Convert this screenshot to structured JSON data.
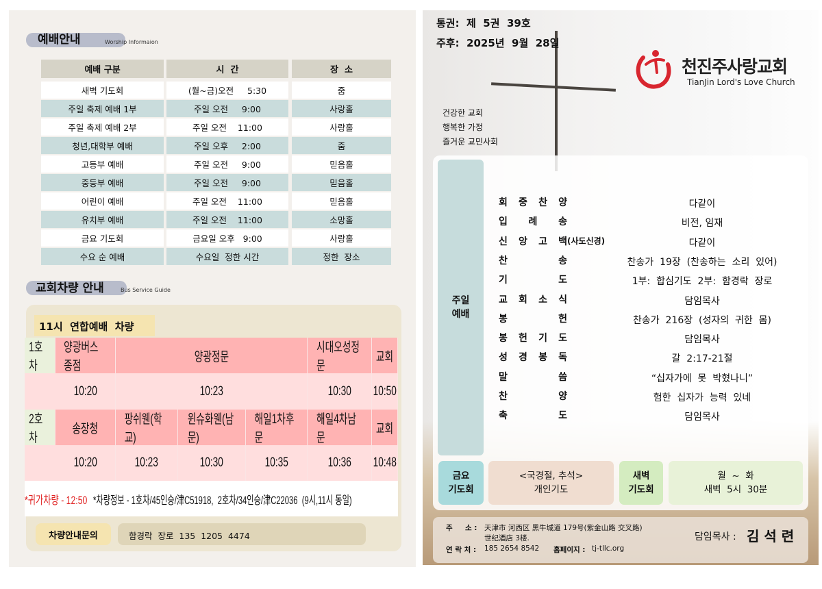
{
  "worship": {
    "title": "예배안내",
    "subtitle": "Worship Informaion",
    "headers": [
      "예배 구분",
      "시  간",
      "장  소"
    ],
    "rows": [
      [
        "새벽 기도회",
        "(월~금)오전     5:30",
        "줌"
      ],
      [
        "주일 축제 예배 1부",
        "주일 오전     9:00",
        "사랑홀"
      ],
      [
        "주일 축제 예배 2부",
        "주일 오전    11:00",
        "사랑홀"
      ],
      [
        "청년,대학부 예배",
        "주일 오후     2:00",
        "줌"
      ],
      [
        "고등부 예배",
        "주일 오전     9:00",
        "믿음홀"
      ],
      [
        "중등부 예배",
        "주일 오전     9:00",
        "믿음홀"
      ],
      [
        "어린이 예배",
        "주일 오전    11:00",
        "믿음홀"
      ],
      [
        "유치부 예배",
        "주일 오전    11:00",
        "소망홀"
      ],
      [
        "금요 기도회",
        "금요일 오후   9:00",
        "사랑홀"
      ],
      [
        "수요 순 예배",
        "수요일  정한 시간",
        "정한  장소"
      ]
    ]
  },
  "bus": {
    "title": "교회차량 안내",
    "subtitle": "Bus Service Guide",
    "banner": "11시  연합예배  차량",
    "bus1": {
      "label": "1호차",
      "stops": [
        "양광버스종점",
        "양광정문",
        "시대오성정문",
        "교회"
      ],
      "times": [
        "10:20",
        "10:23",
        "10:30",
        "10:50"
      ]
    },
    "bus2": {
      "label": "2호차",
      "stops": [
        "송장청",
        "팡쉬웬(학교)",
        "윈슈화웬(남문)",
        "해일1차후문",
        "해일4차남문",
        "교회"
      ],
      "times": [
        "10:20",
        "10:23",
        "10:30",
        "10:35",
        "10:36",
        "10:48"
      ]
    },
    "return_note": "*귀가차량 - 12:50",
    "info_note": "*차량정보 - 1호차/45인승/津C51918,  2호차/34인승/津C22036  (9시,11시 동일)",
    "inquiry_label": "차량안내문의",
    "inquiry_value": "함경락  장로  135  1205  4474"
  },
  "header": {
    "volume": "통권:  제  5권  39호",
    "week": "주후:  2025년  9월  28일",
    "church_name": "천진주사랑교회",
    "church_name_en": "TianJin Lord's Love Church",
    "motto": [
      "건강한 교회",
      "행복한 가정",
      "즐거운 교민사회"
    ]
  },
  "order": {
    "section": [
      "주일",
      "예배"
    ],
    "items": [
      {
        "label": [
          "회",
          "중",
          "찬",
          "양"
        ],
        "suffix": "",
        "value": "다같이"
      },
      {
        "label": [
          "입",
          "례",
          "송"
        ],
        "suffix": "",
        "value": "비전, 임재"
      },
      {
        "label": [
          "신",
          "앙",
          "고",
          "백"
        ],
        "suffix": "(사도신경)",
        "value": "다같이"
      },
      {
        "label": [
          "찬",
          "송"
        ],
        "suffix": "",
        "value": "찬송가  19장  (찬송하는  소리  있어)"
      },
      {
        "label": [
          "기",
          "도"
        ],
        "suffix": "",
        "value": "1부:  합심기도  2부:  함경락  장로"
      },
      {
        "label": [
          "교",
          "회",
          "소",
          "식"
        ],
        "suffix": "",
        "value": "담임목사"
      },
      {
        "label": [
          "봉",
          "헌"
        ],
        "suffix": "",
        "value": "찬송가  216장  (성자의  귀한  몸)"
      },
      {
        "label": [
          "봉",
          "헌",
          "기",
          "도"
        ],
        "suffix": "",
        "value": "담임목사"
      },
      {
        "label": [
          "성",
          "경",
          "봉",
          "독"
        ],
        "suffix": "",
        "value": "갈  2:17-21절"
      },
      {
        "label": [
          "말",
          "씀"
        ],
        "suffix": "",
        "value": "“십자가에  못  박혔나니”"
      },
      {
        "label": [
          "찬",
          "양"
        ],
        "suffix": "",
        "value": "험한  십자가  능력  있네"
      },
      {
        "label": [
          "축",
          "도"
        ],
        "suffix": "",
        "value": "담임목사"
      }
    ]
  },
  "friday": {
    "label": [
      "금요",
      "기도회"
    ],
    "lines": [
      "<국경절,  추석>",
      "개인기도"
    ]
  },
  "dawn": {
    "label": [
      "새벽",
      "기도회"
    ],
    "lines": [
      "월  ~  화",
      "새벽  5시  30분"
    ]
  },
  "footer": {
    "address_label": "주     소 :",
    "address": [
      "天津市 河西区 黑牛城道 179号(紫金山路 交叉路)",
      "世纪酒店 3楼."
    ],
    "contact_label": "연 락 처 :",
    "contact": "185 2654 8542",
    "homepage_label": "홈페이지 :",
    "homepage": "tj-tllc.org",
    "pastor_label": "담임목사 :",
    "pastor": "김 석 련"
  },
  "colors": {
    "brand_red": "#d8262f",
    "row_blue": "#c9dcdc",
    "bus_pink": "#ffb3b3"
  }
}
